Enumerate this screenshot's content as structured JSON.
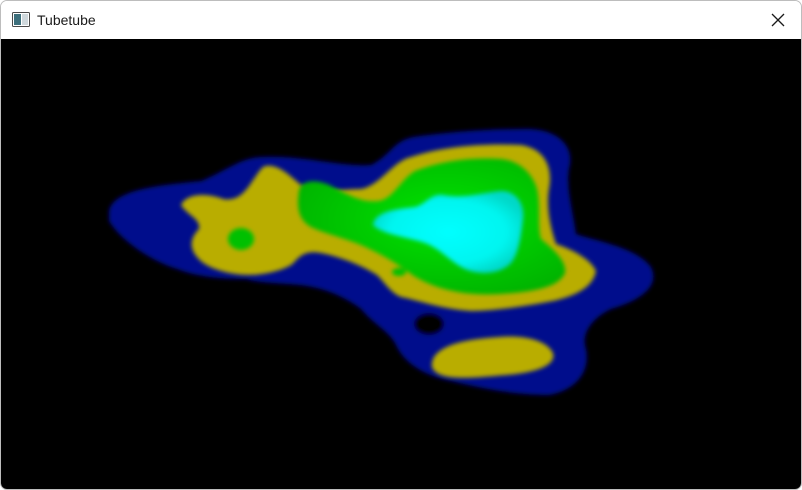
{
  "window": {
    "title": "Tubetube",
    "app_icon": "window-app-icon",
    "close_icon": "close-icon"
  },
  "viewport": {
    "background": "#000000",
    "colormap": {
      "level_1": "#000a8c",
      "level_2": "#b9ad00",
      "level_3": "#00c800",
      "level_4": "#00ffff"
    }
  }
}
